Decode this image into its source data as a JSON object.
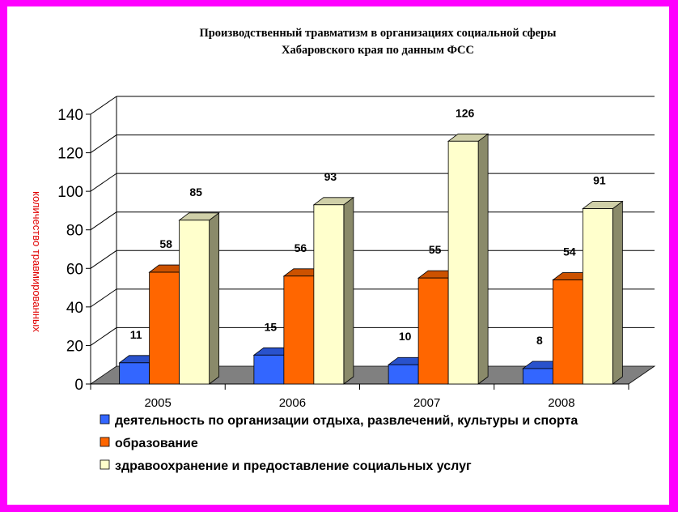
{
  "chart_data": {
    "type": "bar",
    "title_lines": [
      "Производственный травматизм в организациях социальной сферы",
      "Хабаровского края по данным ФСС"
    ],
    "ylabel": "количество травмированных",
    "xlabel": "",
    "ylim": [
      0,
      140
    ],
    "yticks": [
      0,
      20,
      40,
      60,
      80,
      100,
      120,
      140
    ],
    "categories": [
      "2005",
      "2006",
      "2007",
      "2008"
    ],
    "series": [
      {
        "name": "деятельность по организации отдыха, развлечений, культуры и спорта",
        "values": [
          11,
          15,
          10,
          8
        ],
        "color": "#3366ff"
      },
      {
        "name": "образование",
        "values": [
          58,
          56,
          55,
          54
        ],
        "color": "#ff6600"
      },
      {
        "name": "здравоохранение и предоставление социальных услуг",
        "values": [
          85,
          93,
          126,
          91
        ],
        "color": "#ffffcc"
      }
    ],
    "grid": true,
    "legend_position": "bottom",
    "style": "3d-bar"
  },
  "colors": {
    "frame": "#ff00ff",
    "floor": "#808080",
    "ylabel": "#e00000"
  }
}
